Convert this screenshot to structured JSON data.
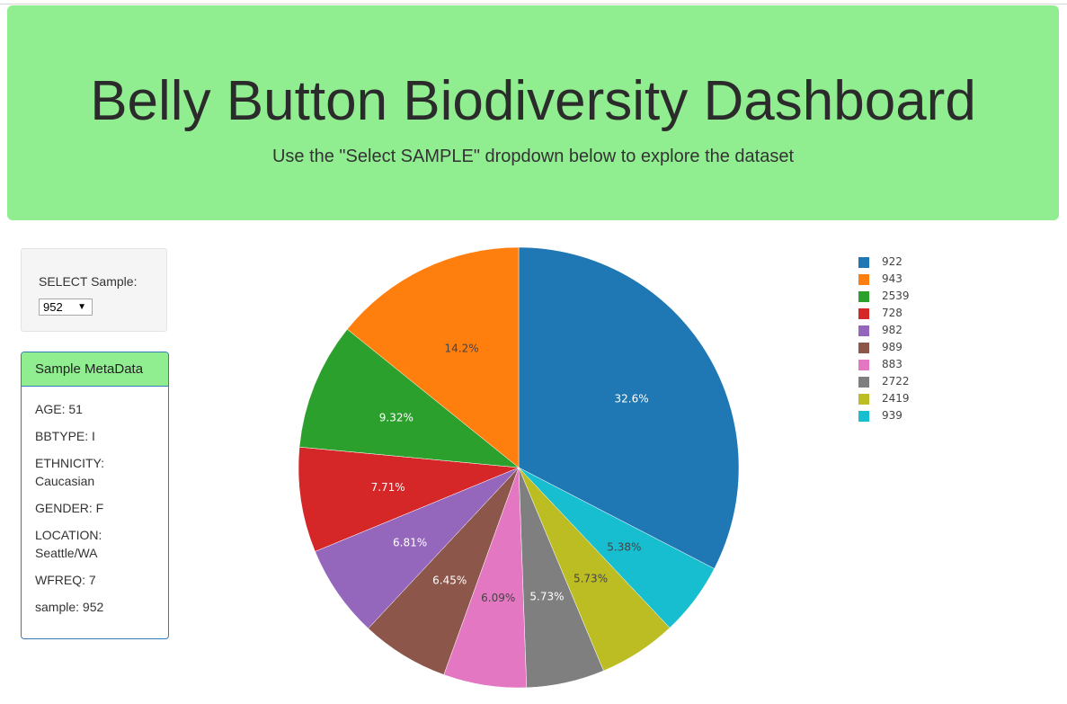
{
  "header": {
    "title": "Belly Button Biodiversity Dashboard",
    "subtitle": "Use the \"Select SAMPLE\" dropdown below to explore the dataset"
  },
  "selector": {
    "label": "SELECT Sample:",
    "value": "952",
    "arrow": "▼"
  },
  "metadata": {
    "heading": "Sample MetaData",
    "items": [
      "AGE: 51",
      "BBTYPE: I",
      "ETHNICITY: Caucasian",
      "GENDER: F",
      "LOCATION: Seattle/WA",
      "WFREQ: 7",
      "sample: 952"
    ]
  },
  "chart_data": {
    "type": "pie",
    "labels": [
      "922",
      "943",
      "2539",
      "728",
      "982",
      "989",
      "883",
      "2722",
      "2419",
      "939"
    ],
    "values": [
      32.6,
      14.2,
      9.32,
      7.71,
      6.81,
      6.45,
      6.09,
      5.73,
      5.73,
      5.38
    ],
    "text_labels": [
      "32.6%",
      "14.2%",
      "9.32%",
      "7.71%",
      "6.81%",
      "6.45%",
      "6.09%",
      "5.73%",
      "5.73%",
      "5.38%"
    ],
    "colors": [
      "#1f77b4",
      "#ff7f0e",
      "#2ca02c",
      "#d62728",
      "#9467bd",
      "#8c564b",
      "#e377c2",
      "#7f7f7f",
      "#bcbd22",
      "#17becf"
    ],
    "label_colors": [
      "#ffffff",
      "#444444",
      "#ffffff",
      "#ffffff",
      "#ffffff",
      "#ffffff",
      "#444444",
      "#ffffff",
      "#444444",
      "#444444"
    ],
    "slice_order": [
      0,
      9,
      8,
      7,
      6,
      5,
      4,
      3,
      2,
      1
    ],
    "direction": "clockwise",
    "legend_position": "right"
  }
}
